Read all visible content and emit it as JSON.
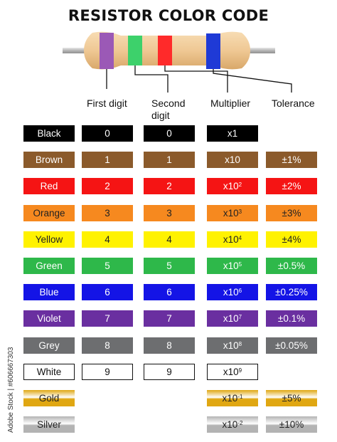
{
  "title": "RESISTOR COLOR CODE",
  "headers": {
    "first_digit": "First digit",
    "second_digit_line1": "Second",
    "second_digit_line2": "digit",
    "multiplier": "Multiplier",
    "tolerance": "Tolerance"
  },
  "resistor": {
    "body_color": "#efc894",
    "lead_color": "#b8b8b8",
    "bands": [
      "#9b59b6",
      "#3dd16b",
      "#ff2a2a",
      "#1f3ad6"
    ]
  },
  "rows": [
    {
      "name": "Black",
      "color": "#000000",
      "text_color": "#ffffff",
      "d1": "0",
      "d2": "0",
      "mul_base": "x1",
      "mul_exp": "",
      "tol": ""
    },
    {
      "name": "Brown",
      "color": "#8b5a2b",
      "text_color": "#ffffff",
      "d1": "1",
      "d2": "1",
      "mul_base": "x10",
      "mul_exp": "",
      "tol": "±1%"
    },
    {
      "name": "Red",
      "color": "#f51414",
      "text_color": "#ffffff",
      "d1": "2",
      "d2": "2",
      "mul_base": "x10",
      "mul_exp": "2",
      "tol": "±2%"
    },
    {
      "name": "Orange",
      "color": "#f6891f",
      "text_color": "#222222",
      "d1": "3",
      "d2": "3",
      "mul_base": "x10",
      "mul_exp": "3",
      "tol": "±3%"
    },
    {
      "name": "Yellow",
      "color": "#fff200",
      "text_color": "#222222",
      "d1": "4",
      "d2": "4",
      "mul_base": "x10",
      "mul_exp": "4",
      "tol": "±4%"
    },
    {
      "name": "Green",
      "color": "#2eb84a",
      "text_color": "#ffffff",
      "d1": "5",
      "d2": "5",
      "mul_base": "x10",
      "mul_exp": "5",
      "tol": "±0.5%"
    },
    {
      "name": "Blue",
      "color": "#1414e6",
      "text_color": "#ffffff",
      "d1": "6",
      "d2": "6",
      "mul_base": "x10",
      "mul_exp": "6",
      "tol": "±0.25%"
    },
    {
      "name": "Violet",
      "color": "#6a2fa0",
      "text_color": "#ffffff",
      "d1": "7",
      "d2": "7",
      "mul_base": "x10",
      "mul_exp": "7",
      "tol": "±0.1%"
    },
    {
      "name": "Grey",
      "color": "#6d6e70",
      "text_color": "#ffffff",
      "d1": "8",
      "d2": "8",
      "mul_base": "x10",
      "mul_exp": "8",
      "tol": "±0.05%"
    },
    {
      "name": "White",
      "color": "#ffffff",
      "text_color": "#111111",
      "d1": "9",
      "d2": "9",
      "mul_base": "x10",
      "mul_exp": "9",
      "tol": ""
    },
    {
      "name": "Gold",
      "color": "#e0a712",
      "text_color": "#222222",
      "d1": "",
      "d2": "",
      "mul_base": "x10",
      "mul_exp": "-1",
      "tol": "±5%"
    },
    {
      "name": "Silver",
      "color": "#b3b3b3",
      "text_color": "#222222",
      "d1": "",
      "d2": "",
      "mul_base": "x10",
      "mul_exp": "-2",
      "tol": "±10%"
    }
  ],
  "watermark": "Adobe Stock | #606667303"
}
